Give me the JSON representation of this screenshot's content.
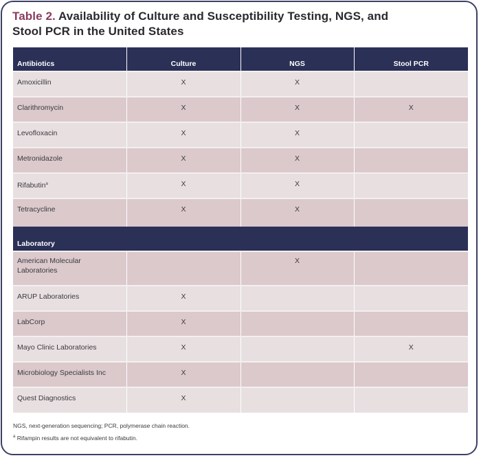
{
  "title": {
    "label": "Table 2.",
    "text": " Availability of Culture and Susceptibility Testing, NGS, and Stool PCR in the United States"
  },
  "colors": {
    "header_bg": "#2b3057",
    "title_accent": "#8b3a5a",
    "row_light": "#e8dfe1",
    "row_dark": "#dbc9cc",
    "frame_border": "#3b3f63"
  },
  "table": {
    "columns": [
      "Antibiotics",
      "Culture",
      "NGS",
      "Stool PCR"
    ],
    "antibiotics": [
      {
        "name": "Amoxicillin",
        "sup": "",
        "culture": "X",
        "ngs": "X",
        "stool_pcr": ""
      },
      {
        "name": "Clarithromycin",
        "sup": "",
        "culture": "X",
        "ngs": "X",
        "stool_pcr": "X"
      },
      {
        "name": "Levofloxacin",
        "sup": "",
        "culture": "X",
        "ngs": "X",
        "stool_pcr": ""
      },
      {
        "name": "Metronidazole",
        "sup": "",
        "culture": "X",
        "ngs": "X",
        "stool_pcr": ""
      },
      {
        "name": "Rifabutin",
        "sup": "a",
        "culture": "X",
        "ngs": "X",
        "stool_pcr": ""
      },
      {
        "name": "Tetracycline",
        "sup": "",
        "culture": "X",
        "ngs": "X",
        "stool_pcr": ""
      }
    ],
    "laboratory_header": "Laboratory",
    "laboratories": [
      {
        "name": "American Molecular Laboratories",
        "culture": "",
        "ngs": "X",
        "stool_pcr": ""
      },
      {
        "name": "ARUP Laboratories",
        "culture": "X",
        "ngs": "",
        "stool_pcr": ""
      },
      {
        "name": "LabCorp",
        "culture": "X",
        "ngs": "",
        "stool_pcr": ""
      },
      {
        "name": "Mayo Clinic Laboratories",
        "culture": "X",
        "ngs": "",
        "stool_pcr": "X"
      },
      {
        "name": "Microbiology Specialists Inc",
        "culture": "X",
        "ngs": "",
        "stool_pcr": ""
      },
      {
        "name": "Quest Diagnostics",
        "culture": "X",
        "ngs": "",
        "stool_pcr": ""
      }
    ]
  },
  "footnotes": {
    "abbreviations": "NGS, next-generation sequencing; PCR, polymerase chain reaction.",
    "a_marker": "a",
    "a_text": " Rifampin results are not equivalent to rifabutin."
  }
}
